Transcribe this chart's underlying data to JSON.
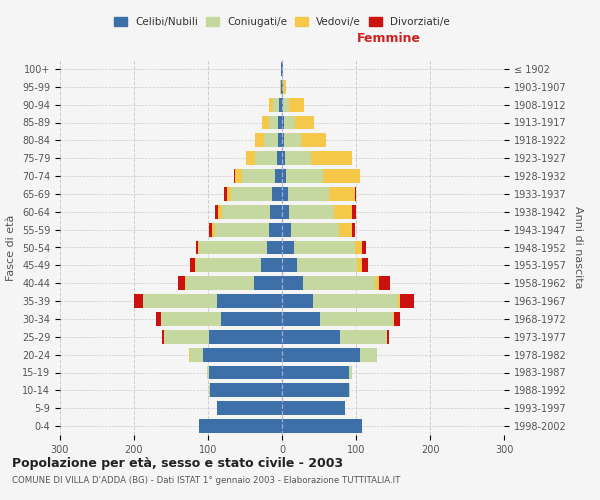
{
  "age_groups": [
    "0-4",
    "5-9",
    "10-14",
    "15-19",
    "20-24",
    "25-29",
    "30-34",
    "35-39",
    "40-44",
    "45-49",
    "50-54",
    "55-59",
    "60-64",
    "65-69",
    "70-74",
    "75-79",
    "80-84",
    "85-89",
    "90-94",
    "95-99",
    "100+"
  ],
  "birth_years": [
    "1998-2002",
    "1993-1997",
    "1988-1992",
    "1983-1987",
    "1978-1982",
    "1973-1977",
    "1968-1972",
    "1963-1967",
    "1958-1962",
    "1953-1957",
    "1948-1952",
    "1943-1947",
    "1938-1942",
    "1933-1937",
    "1928-1932",
    "1923-1927",
    "1918-1922",
    "1913-1917",
    "1908-1912",
    "1903-1907",
    "≤ 1902"
  ],
  "males": {
    "celibi": [
      112,
      88,
      97,
      98,
      107,
      98,
      82,
      88,
      38,
      28,
      20,
      18,
      16,
      13,
      10,
      7,
      5,
      5,
      4,
      1,
      1
    ],
    "coniugati": [
      0,
      0,
      1,
      3,
      18,
      62,
      82,
      100,
      92,
      88,
      92,
      72,
      65,
      56,
      44,
      30,
      20,
      12,
      8,
      1,
      0
    ],
    "vedovi": [
      0,
      0,
      0,
      0,
      1,
      0,
      0,
      0,
      1,
      1,
      2,
      4,
      5,
      6,
      10,
      12,
      12,
      10,
      5,
      1,
      0
    ],
    "divorziati": [
      0,
      0,
      0,
      0,
      0,
      2,
      6,
      12,
      9,
      8,
      2,
      4,
      5,
      4,
      1,
      0,
      0,
      0,
      0,
      0,
      0
    ]
  },
  "females": {
    "nubili": [
      108,
      85,
      90,
      90,
      105,
      78,
      52,
      42,
      28,
      20,
      16,
      12,
      10,
      8,
      6,
      4,
      3,
      3,
      2,
      1,
      1
    ],
    "coniugate": [
      0,
      0,
      2,
      5,
      24,
      64,
      98,
      115,
      98,
      82,
      82,
      65,
      60,
      55,
      50,
      35,
      22,
      15,
      8,
      2,
      0
    ],
    "vedove": [
      0,
      0,
      0,
      0,
      0,
      0,
      1,
      2,
      5,
      6,
      10,
      18,
      25,
      35,
      50,
      55,
      35,
      25,
      20,
      3,
      1
    ],
    "divorziate": [
      0,
      0,
      0,
      0,
      0,
      2,
      8,
      20,
      15,
      8,
      6,
      4,
      5,
      2,
      0,
      0,
      0,
      0,
      0,
      0,
      0
    ]
  },
  "colors": {
    "celibi_nubili": "#3d6fa8",
    "coniugati": "#c5d8a0",
    "vedovi": "#f5c84a",
    "divorziati": "#cc1111"
  },
  "xlim": 300,
  "title": "Popolazione per età, sesso e stato civile - 2003",
  "subtitle": "COMUNE DI VILLA D'ADDA (BG) - Dati ISTAT 1° gennaio 2003 - Elaborazione TUTTITALIA.IT",
  "ylabel_left": "Fasce di età",
  "ylabel_right": "Anni di nascita",
  "xlabel_right": "Femmine",
  "background_color": "#f5f5f5",
  "grid_color": "#cccccc"
}
